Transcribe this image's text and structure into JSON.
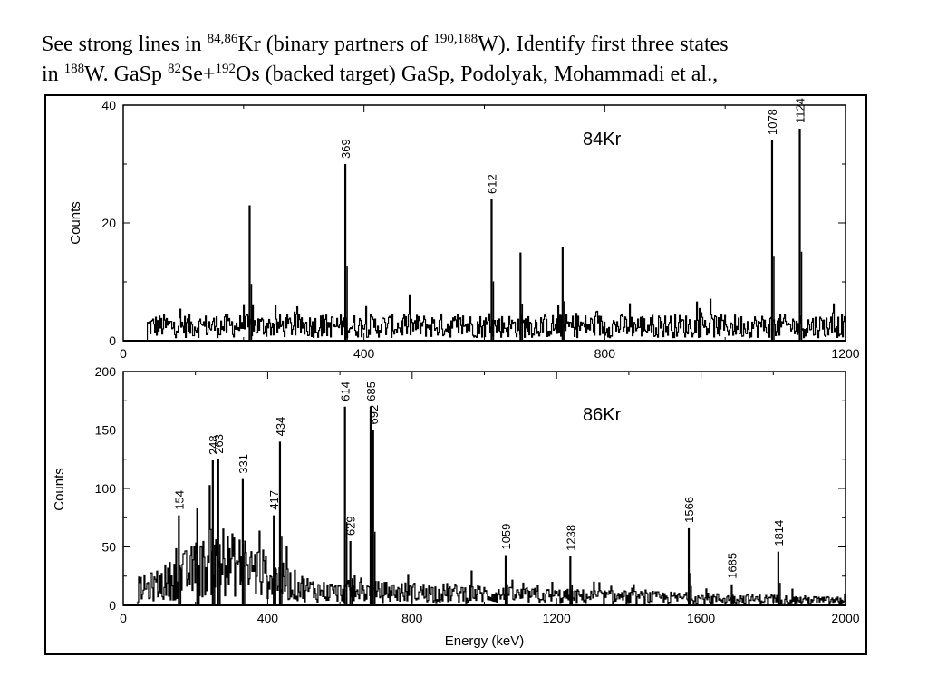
{
  "caption": {
    "part1": "See strong lines in ",
    "sup1": "84,86",
    "part2": "Kr (binary partners of ",
    "sup2": "190,188",
    "part3": "W). Identify first three states",
    "part4": "in ",
    "sup3": "188",
    "part5": "W. GaSp ",
    "sup4": "82",
    "part6": "Se+",
    "sup5": "192",
    "part7": "Os (backed target) GaSp, Podolyak, Mohammadi et al.,"
  },
  "chart_data": [
    {
      "type": "line",
      "title": "84Kr",
      "xlabel": "",
      "ylabel": "Counts",
      "xlim": [
        0,
        1200
      ],
      "ylim": [
        0,
        40
      ],
      "x_ticks": [
        0,
        400,
        800,
        1200
      ],
      "y_ticks": [
        0,
        20,
        40
      ],
      "grid": false,
      "background_range": [
        40,
        1200
      ],
      "background_level": 2.5,
      "peaks": [
        {
          "energy": 210,
          "counts": 23,
          "label": ""
        },
        {
          "energy": 369,
          "counts": 30,
          "label": "369"
        },
        {
          "energy": 612,
          "counts": 24,
          "label": "612"
        },
        {
          "energy": 660,
          "counts": 15,
          "label": ""
        },
        {
          "energy": 730,
          "counts": 16,
          "label": ""
        },
        {
          "energy": 1078,
          "counts": 34,
          "label": "1078"
        },
        {
          "energy": 1124,
          "counts": 36,
          "label": "1124"
        }
      ]
    },
    {
      "type": "line",
      "title": "86Kr",
      "xlabel": "Energy (keV)",
      "ylabel": "Counts",
      "xlim": [
        0,
        2000
      ],
      "ylim": [
        0,
        200
      ],
      "x_ticks": [
        0,
        400,
        800,
        1200,
        1600,
        2000
      ],
      "y_ticks": [
        0,
        50,
        100,
        150,
        200
      ],
      "grid": false,
      "background_range": [
        40,
        2000
      ],
      "background_level": 15,
      "peaks": [
        {
          "energy": 154,
          "counts": 77,
          "label": "154"
        },
        {
          "energy": 205,
          "counts": 83,
          "label": ""
        },
        {
          "energy": 248,
          "counts": 124,
          "label": "248"
        },
        {
          "energy": 263,
          "counts": 125,
          "label": "263"
        },
        {
          "energy": 331,
          "counts": 108,
          "label": "331"
        },
        {
          "energy": 417,
          "counts": 77,
          "label": "417"
        },
        {
          "energy": 434,
          "counts": 140,
          "label": "434"
        },
        {
          "energy": 614,
          "counts": 170,
          "label": "614"
        },
        {
          "energy": 629,
          "counts": 55,
          "label": "629"
        },
        {
          "energy": 685,
          "counts": 170,
          "label": "685"
        },
        {
          "energy": 692,
          "counts": 150,
          "label": "692"
        },
        {
          "energy": 1059,
          "counts": 43,
          "label": "1059"
        },
        {
          "energy": 1238,
          "counts": 42,
          "label": "1238"
        },
        {
          "energy": 1566,
          "counts": 66,
          "label": "1566"
        },
        {
          "energy": 1685,
          "counts": 18,
          "label": "1685"
        },
        {
          "energy": 1814,
          "counts": 46,
          "label": "1814"
        }
      ]
    }
  ]
}
